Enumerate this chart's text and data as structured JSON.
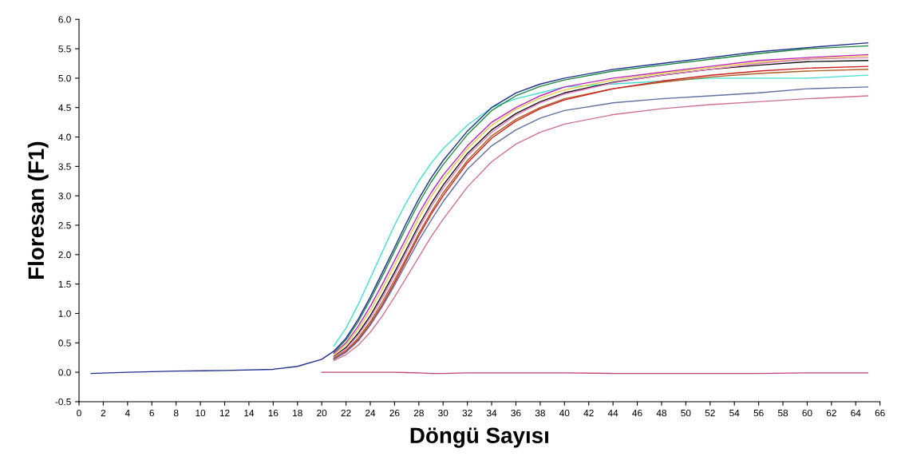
{
  "chart_data": {
    "type": "line",
    "xlabel": "Döngü Sayısı",
    "ylabel": "Floresan (F1)",
    "x": [
      21,
      22,
      23,
      24,
      25,
      26,
      27,
      28,
      29,
      30,
      32,
      34,
      36,
      38,
      40,
      44,
      48,
      52,
      56,
      60,
      65
    ],
    "series": [
      {
        "color": "#40e0d0",
        "values": [
          0.45,
          0.75,
          1.15,
          1.6,
          2.05,
          2.5,
          2.9,
          3.25,
          3.55,
          3.8,
          4.2,
          4.5,
          4.65,
          4.75,
          4.85,
          4.9,
          4.95,
          5.0,
          5.0,
          5.0,
          5.05
        ]
      },
      {
        "color": "#1a8a3a",
        "values": [
          0.34,
          0.55,
          0.86,
          1.23,
          1.64,
          2.06,
          2.48,
          2.88,
          3.23,
          3.53,
          4.04,
          4.45,
          4.7,
          4.86,
          4.97,
          5.12,
          5.22,
          5.32,
          5.42,
          5.5,
          5.55
        ]
      },
      {
        "color": "#c020c0",
        "values": [
          0.32,
          0.5,
          0.78,
          1.12,
          1.5,
          1.9,
          2.3,
          2.7,
          3.05,
          3.35,
          3.85,
          4.25,
          4.5,
          4.7,
          4.85,
          5.0,
          5.1,
          5.2,
          5.3,
          5.35,
          5.4
        ]
      },
      {
        "color": "#e0d040",
        "values": [
          0.3,
          0.47,
          0.73,
          1.05,
          1.42,
          1.82,
          2.22,
          2.62,
          2.98,
          3.28,
          3.8,
          4.2,
          4.47,
          4.66,
          4.8,
          4.97,
          5.08,
          5.18,
          5.27,
          5.33,
          5.38
        ]
      },
      {
        "color": "#101010",
        "values": [
          0.27,
          0.42,
          0.66,
          0.96,
          1.32,
          1.7,
          2.1,
          2.5,
          2.86,
          3.18,
          3.72,
          4.12,
          4.4,
          4.6,
          4.75,
          4.93,
          5.05,
          5.15,
          5.22,
          5.28,
          5.3
        ]
      },
      {
        "color": "#e080c0",
        "values": [
          0.26,
          0.4,
          0.63,
          0.92,
          1.27,
          1.65,
          2.05,
          2.45,
          2.81,
          3.13,
          3.68,
          4.08,
          4.37,
          4.58,
          4.73,
          4.92,
          5.05,
          5.15,
          5.25,
          5.32,
          5.35
        ]
      },
      {
        "color": "#b06020",
        "values": [
          0.24,
          0.37,
          0.58,
          0.86,
          1.2,
          1.57,
          1.96,
          2.36,
          2.72,
          3.05,
          3.6,
          4.02,
          4.3,
          4.5,
          4.65,
          4.82,
          4.93,
          5.02,
          5.08,
          5.12,
          5.15
        ]
      },
      {
        "color": "#d02020",
        "values": [
          0.22,
          0.35,
          0.55,
          0.82,
          1.15,
          1.52,
          1.92,
          2.32,
          2.68,
          3.0,
          3.56,
          3.98,
          4.27,
          4.48,
          4.63,
          4.82,
          4.95,
          5.05,
          5.12,
          5.17,
          5.2
        ]
      },
      {
        "color": "#6070a0",
        "values": [
          0.22,
          0.34,
          0.53,
          0.8,
          1.12,
          1.48,
          1.86,
          2.24,
          2.58,
          2.9,
          3.45,
          3.85,
          4.12,
          4.32,
          4.45,
          4.58,
          4.65,
          4.7,
          4.75,
          4.82,
          4.85
        ]
      },
      {
        "color": "#d07090",
        "values": [
          0.2,
          0.3,
          0.46,
          0.68,
          0.96,
          1.28,
          1.62,
          1.96,
          2.3,
          2.6,
          3.15,
          3.58,
          3.88,
          4.08,
          4.22,
          4.38,
          4.48,
          4.55,
          4.6,
          4.65,
          4.7
        ]
      },
      {
        "color": "#1f2f8f",
        "x": [
          1,
          4,
          8,
          12,
          16,
          18,
          20,
          21,
          22,
          23,
          24,
          25,
          26,
          27,
          28,
          29,
          30,
          32,
          34,
          36,
          38,
          40,
          44,
          48,
          52,
          56,
          60,
          65
        ],
        "values": [
          -0.02,
          0.0,
          0.02,
          0.03,
          0.05,
          0.1,
          0.22,
          0.36,
          0.58,
          0.9,
          1.28,
          1.7,
          2.12,
          2.55,
          2.95,
          3.3,
          3.6,
          4.1,
          4.5,
          4.75,
          4.9,
          5.0,
          5.15,
          5.25,
          5.35,
          5.45,
          5.52,
          5.6
        ]
      },
      {
        "color": "#c0407a",
        "x": [
          20,
          22,
          24,
          26,
          28,
          29,
          30,
          32,
          34,
          36,
          38,
          40,
          44,
          48,
          52,
          56,
          60,
          65
        ],
        "values": [
          0.0,
          0.0,
          0.0,
          0.0,
          -0.01,
          -0.02,
          -0.02,
          -0.01,
          -0.01,
          -0.01,
          -0.01,
          -0.01,
          -0.02,
          -0.02,
          -0.02,
          -0.02,
          -0.01,
          -0.01
        ]
      }
    ],
    "xlim": [
      0,
      66
    ],
    "xticks": [
      0,
      2,
      4,
      6,
      8,
      10,
      12,
      14,
      16,
      18,
      20,
      22,
      24,
      26,
      28,
      30,
      32,
      34,
      36,
      38,
      40,
      42,
      44,
      46,
      48,
      50,
      52,
      54,
      56,
      58,
      60,
      62,
      64,
      66
    ],
    "ylim": [
      -0.5,
      6.0
    ],
    "yticks": [
      {
        "value": -0.5,
        "label": "-0.5"
      },
      {
        "value": 0,
        "label": "0.0"
      },
      {
        "value": 0.5,
        "label": "0.5"
      },
      {
        "value": 1,
        "label": "1.0"
      },
      {
        "value": 1.5,
        "label": "1.5"
      },
      {
        "value": 2,
        "label": "2.0"
      },
      {
        "value": 2.5,
        "label": "2.5"
      },
      {
        "value": 3,
        "label": "3.0"
      },
      {
        "value": 3.5,
        "label": "3.5"
      },
      {
        "value": 4,
        "label": "4.0"
      },
      {
        "value": 4.5,
        "label": "4.5"
      },
      {
        "value": 5,
        "label": "5.0"
      },
      {
        "value": 5.5,
        "label": "5.5"
      },
      {
        "value": 6,
        "label": "6.0"
      }
    ],
    "grid": false,
    "legend": false,
    "marker": "none",
    "line_style": "solid"
  }
}
